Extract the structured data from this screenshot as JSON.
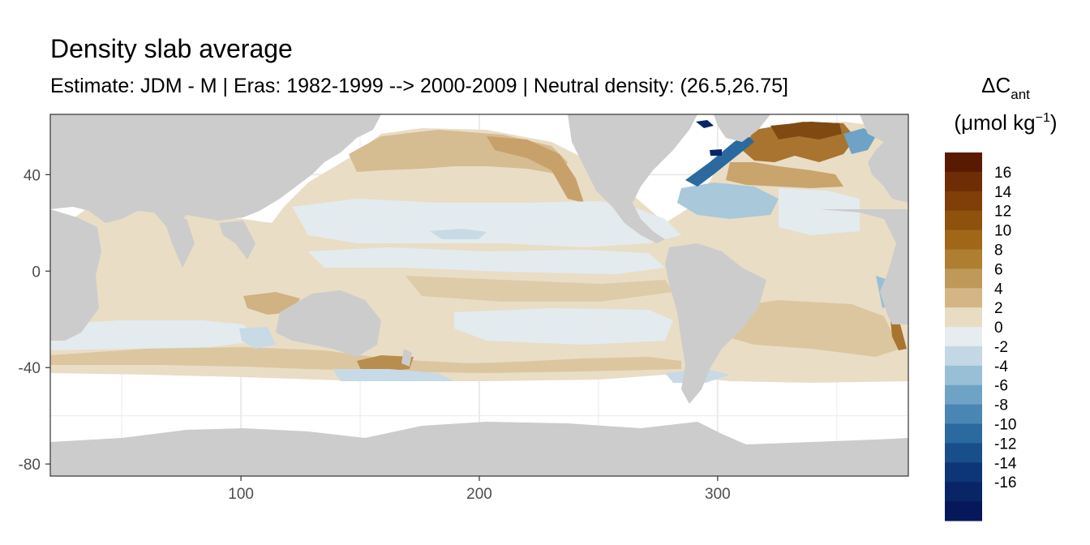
{
  "title": "Density slab average",
  "subtitle": "Estimate: JDM - M | Eras: 1982-1999 --> 2000-2009 | Neutral density: (26.5,26.75]",
  "chart_data": {
    "type": "heatmap",
    "x_ticks": [
      100,
      200,
      300
    ],
    "y_ticks": [
      40,
      0,
      -40,
      -80
    ],
    "xlim": [
      20,
      380
    ],
    "ylim": [
      -85,
      65
    ],
    "grid": true,
    "legend_position": "right",
    "legend": {
      "title_main": "ΔC",
      "title_sub": "ant",
      "units_prefix": "(μmol kg",
      "units_exp": "−1",
      "units_suffix": ")",
      "labels": [
        "16",
        "14",
        "12",
        "10",
        "8",
        "6",
        "4",
        "2",
        "0",
        "-2",
        "-4",
        "-6",
        "-8",
        "-10",
        "-12",
        "-14",
        "-16"
      ],
      "colors": [
        "#5a1a02",
        "#6e2d05",
        "#7f3f07",
        "#8f520c",
        "#a06718",
        "#ae7f30",
        "#bf9958",
        "#d4b686",
        "#e8dcc3",
        "#e6ecef",
        "#c3d8e4",
        "#99bfd6",
        "#6ea3c6",
        "#4a86b3",
        "#2a6a9e",
        "#184f8a",
        "#0c3677",
        "#0a2566",
        "#06185a"
      ]
    },
    "colors": {
      "land": "#cccccc",
      "no_data": "#ffffff",
      "panel_border": "#333333",
      "grid": "#ebebeb"
    }
  }
}
